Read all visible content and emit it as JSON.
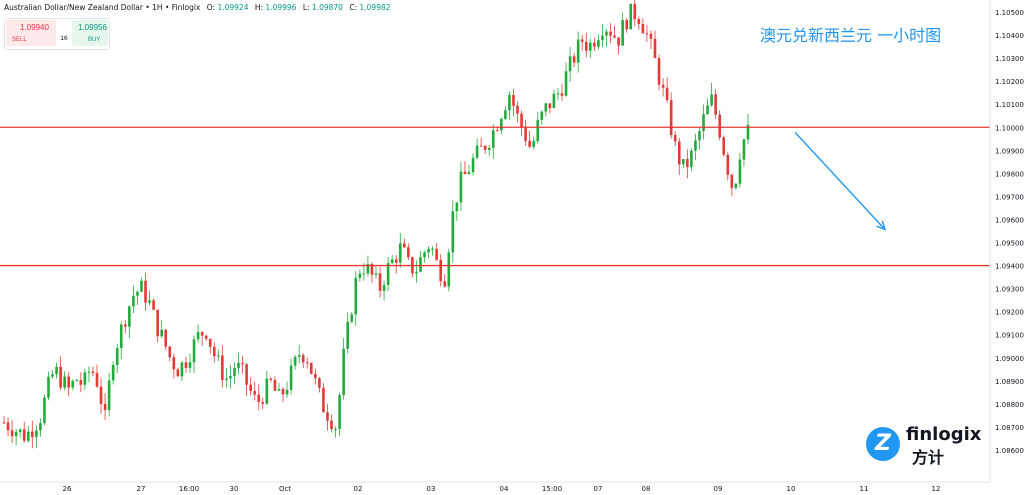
{
  "header": {
    "symbol": "Australian Dollar/New Zealand Dollar",
    "sep1": "•",
    "interval": "1H",
    "sep2": "•",
    "source": "Finlogix",
    "ohlc": [
      {
        "key": "O:",
        "value": "1.09924"
      },
      {
        "key": "H:",
        "value": "1.09996"
      },
      {
        "key": "L:",
        "value": "1.09870"
      },
      {
        "key": "C:",
        "value": "1.09982"
      }
    ]
  },
  "trade_panel": {
    "sell_price": "1.09940",
    "buy_price": "1.09956",
    "sell_label": "SELL",
    "buy_label": "BUY",
    "spread": "16"
  },
  "annotation_title": "澳元兑新西兰元 一小时图",
  "logo": {
    "word": "finlogix",
    "sub": "方计"
  },
  "colors": {
    "up": "#089981",
    "down": "#f23645",
    "candle_up": "#22ab3c",
    "candle_down": "#e53935",
    "hline": "#e53935",
    "arrow": "#2196f3",
    "axis_text": "#131722"
  },
  "chart_data": {
    "type": "candlestick",
    "y_axis": {
      "side": "right",
      "ylim": [
        1.0845,
        1.1055
      ],
      "ticks": [
        "1.10500",
        "1.10400",
        "1.10300",
        "1.10200",
        "1.10100",
        "1.10000",
        "1.09900",
        "1.09800",
        "1.09700",
        "1.09600",
        "1.09500",
        "1.09400",
        "1.09300",
        "1.09200",
        "1.09100",
        "1.09000",
        "1.08900",
        "1.08800",
        "1.08700",
        "1.08600"
      ]
    },
    "x_axis": {
      "tick_labels": [
        "26",
        "27",
        "16:00",
        "30",
        "Oct",
        "02",
        "03",
        "04",
        "15:00",
        "07",
        "08",
        "09",
        "10",
        "11",
        "12"
      ]
    },
    "horizontal_lines": [
      1.1,
      1.094
    ],
    "arrow": {
      "from_price": 1.099,
      "to_price": 1.096,
      "direction": "down"
    },
    "price_path": [
      1.0872,
      1.087,
      1.0868,
      1.0866,
      1.087,
      1.0874,
      1.0886,
      1.0895,
      1.089,
      1.0886,
      1.0891,
      1.0888,
      1.0896,
      1.0889,
      1.0873,
      1.09,
      1.091,
      1.092,
      1.0928,
      1.093,
      1.0925,
      1.0915,
      1.0908,
      1.09,
      1.0895,
      1.0898,
      1.0904,
      1.091,
      1.0912,
      1.0902,
      1.0895,
      1.089,
      1.0897,
      1.0893,
      1.0886,
      1.088,
      1.0885,
      1.0889,
      1.0882,
      1.0887,
      1.0895,
      1.0903,
      1.09,
      1.089,
      1.088,
      1.0875,
      1.087,
      1.09,
      1.092,
      1.0938,
      1.094,
      1.0935,
      1.093,
      1.0938,
      1.0943,
      1.0948,
      1.094,
      1.0938,
      1.0945,
      1.095,
      1.094,
      1.0935,
      1.096,
      1.0975,
      1.098,
      1.0986,
      1.099,
      1.0994,
      1.1,
      1.1008,
      1.1015,
      1.1005,
      1.0998,
      1.099,
      1.1002,
      1.1008,
      1.1012,
      1.1016,
      1.1024,
      1.1031,
      1.1038,
      1.1035,
      1.104,
      1.1045,
      1.1042,
      1.1038,
      1.1046,
      1.105,
      1.1048,
      1.104,
      1.103,
      1.1018,
      1.1005,
      1.099,
      1.0982,
      1.0986,
      1.0995,
      1.1005,
      1.1012,
      1.1,
      1.0985,
      1.0972,
      1.0992,
      1.0998
    ]
  }
}
